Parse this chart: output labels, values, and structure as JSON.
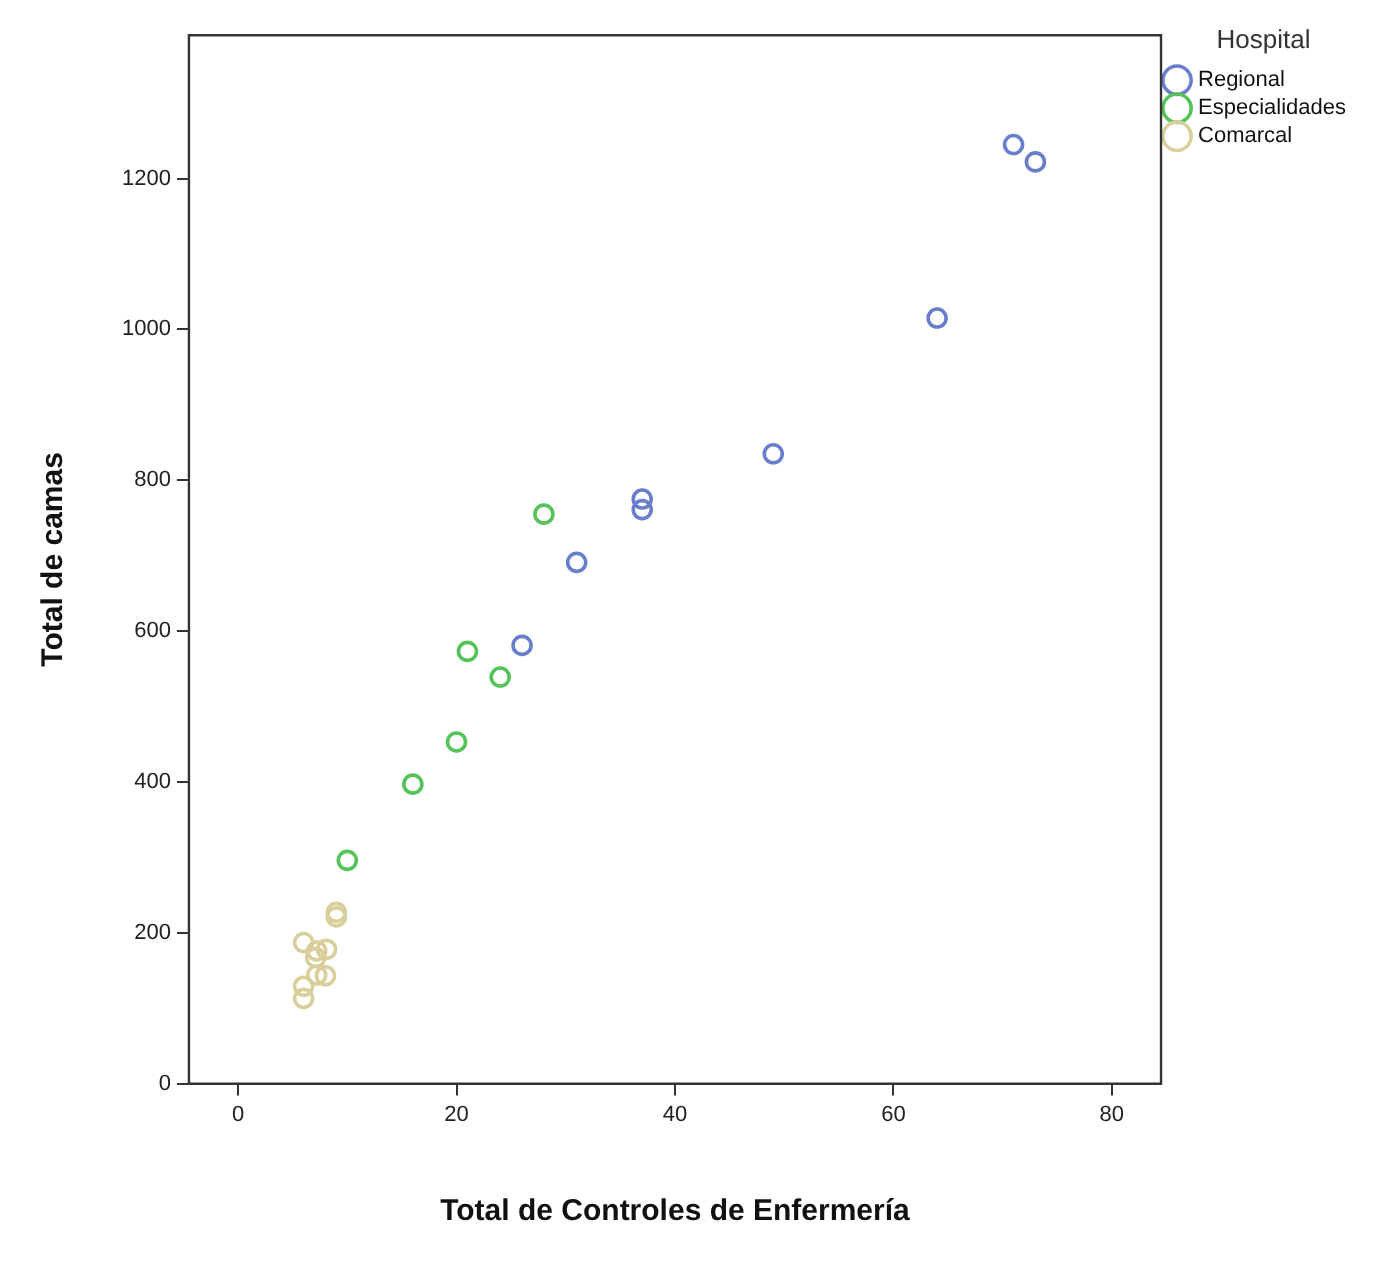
{
  "chart_data": {
    "type": "scatter",
    "xlabel": "Total de Controles de Enfermería",
    "ylabel": "Total de camas",
    "legend_title": "Hospital",
    "legend": "top right",
    "marker": "circle",
    "grid": false,
    "xlim": [
      -4.5,
      84.5
    ],
    "ylim": [
      0,
      1390
    ],
    "xticks": [
      0,
      20,
      40,
      60,
      80
    ],
    "yticks": [
      0,
      200,
      400,
      600,
      800,
      1000,
      1200
    ],
    "series": [
      {
        "name": "Regional",
        "color": "#6a7fcc",
        "x": [
          71,
          73,
          64,
          49,
          37,
          37,
          31,
          26
        ],
        "values": [
          1245,
          1222,
          1015,
          835,
          775,
          761,
          691,
          581
        ]
      },
      {
        "name": "Especialidades",
        "color": "#55c25a",
        "x": [
          28,
          21,
          24,
          20,
          16,
          10
        ],
        "values": [
          755,
          573,
          539,
          453,
          397,
          296
        ]
      },
      {
        "name": "Comarcal",
        "color": "#d8cf9c",
        "x": [
          9,
          9,
          6,
          7.2,
          8.1,
          7.1,
          7.2,
          8,
          6,
          6
        ],
        "values": [
          227,
          221,
          187,
          176,
          178,
          167,
          144,
          143,
          129,
          113
        ]
      }
    ]
  }
}
